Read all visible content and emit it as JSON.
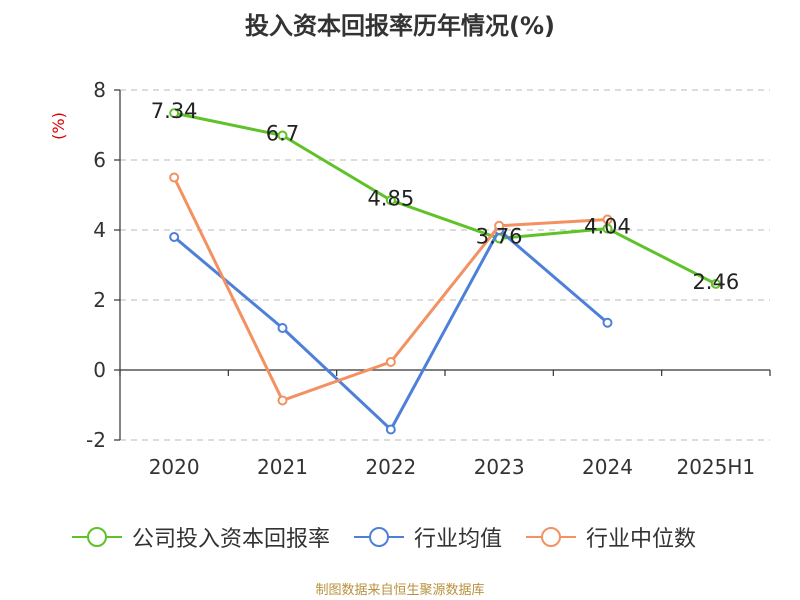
{
  "chart_data": {
    "type": "line",
    "title": "投入资本回报率历年情况(%)",
    "ylabel": "(%)",
    "categories": [
      "2020",
      "2021",
      "2022",
      "2023",
      "2024",
      "2025H1"
    ],
    "ylim": [
      -2,
      8
    ],
    "yticks": [
      -2,
      0,
      2,
      4,
      6,
      8
    ],
    "grid": "dashed horizontal",
    "legend_position": "bottom",
    "series": [
      {
        "name": "公司投入资本回报率",
        "color": "#5ec228",
        "values": [
          7.34,
          6.7,
          4.85,
          3.76,
          4.04,
          2.46
        ],
        "data_labels": [
          "7.34",
          "6.7",
          "4.85",
          "3.76",
          "4.04",
          "2.46"
        ]
      },
      {
        "name": "行业均值",
        "color": "#4e7fd9",
        "values": [
          3.8,
          1.2,
          -1.7,
          4.0,
          1.35,
          null
        ]
      },
      {
        "name": "行业中位数",
        "color": "#f39161",
        "values": [
          5.5,
          -0.87,
          0.23,
          4.12,
          4.3,
          null
        ]
      }
    ]
  },
  "footer": {
    "source": "制图数据来自恒生聚源数据库"
  }
}
